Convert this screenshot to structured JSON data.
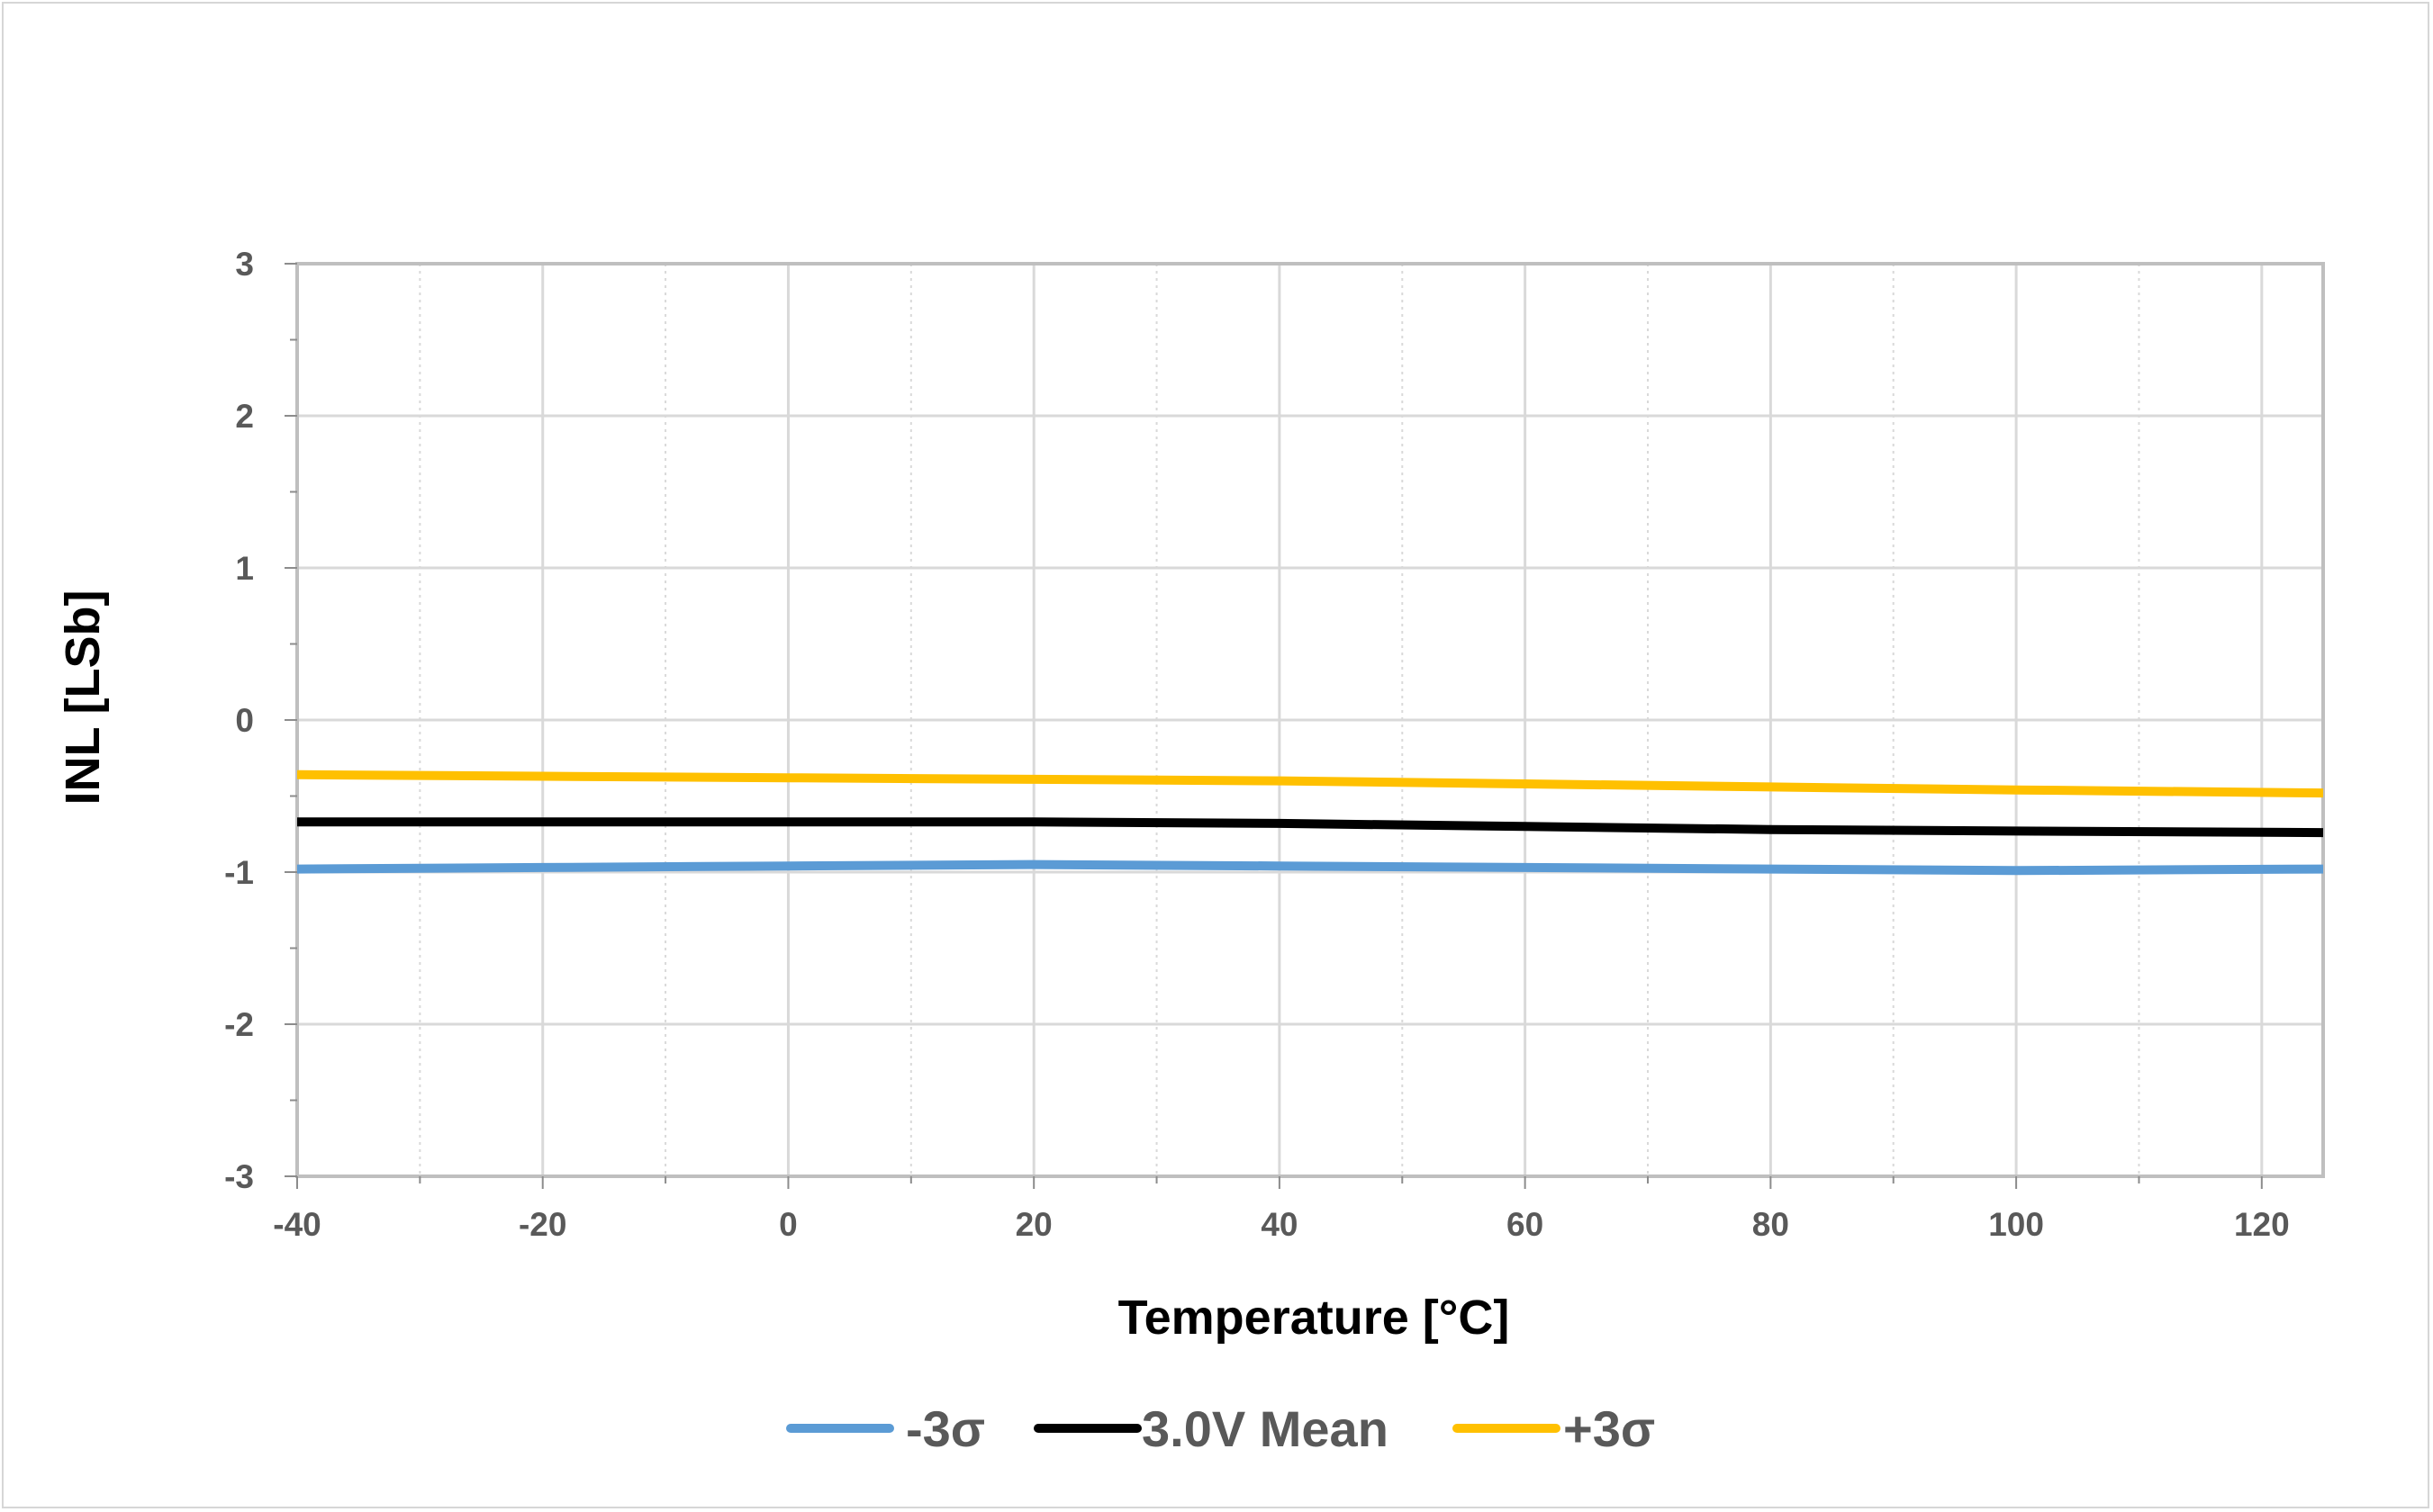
{
  "chart_data": {
    "type": "line",
    "title": "",
    "xlabel": "Temperature [°C]",
    "ylabel": "INL [LSb]",
    "xlim": [
      -40,
      125
    ],
    "ylim": [
      -3,
      3
    ],
    "xticks": [
      -40,
      -20,
      0,
      20,
      40,
      60,
      80,
      100,
      120
    ],
    "yticks": [
      -3,
      -2,
      -1,
      0,
      1,
      2,
      3
    ],
    "x_minor_step": 10,
    "y_minor_step": 0.5,
    "grid": true,
    "legend_position": "bottom",
    "series": [
      {
        "name": "-3σ",
        "color": "#5b9bd5",
        "x": [
          -40,
          -20,
          0,
          20,
          40,
          60,
          80,
          100,
          125
        ],
        "y": [
          -0.98,
          -0.97,
          -0.96,
          -0.95,
          -0.96,
          -0.97,
          -0.98,
          -0.99,
          -0.98
        ]
      },
      {
        "name": "3.0V Mean",
        "color": "#000000",
        "x": [
          -40,
          -20,
          0,
          20,
          40,
          60,
          80,
          100,
          125
        ],
        "y": [
          -0.67,
          -0.67,
          -0.67,
          -0.67,
          -0.68,
          -0.7,
          -0.72,
          -0.73,
          -0.74
        ]
      },
      {
        "name": "+3σ",
        "color": "#ffc000",
        "x": [
          -40,
          -20,
          0,
          20,
          40,
          60,
          80,
          100,
          125
        ],
        "y": [
          -0.36,
          -0.37,
          -0.38,
          -0.39,
          -0.4,
          -0.42,
          -0.44,
          -0.46,
          -0.48
        ]
      }
    ]
  }
}
